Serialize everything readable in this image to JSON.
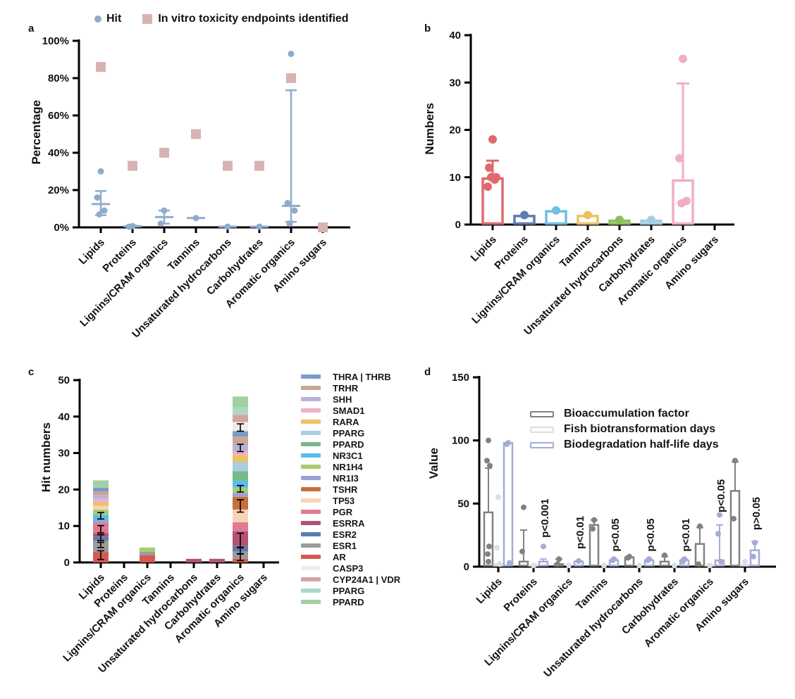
{
  "panels": {
    "a": {
      "label": "a",
      "ylabel": "Percentage"
    },
    "b": {
      "label": "b",
      "ylabel": "Numbers"
    },
    "c": {
      "label": "c",
      "ylabel": "Hit numbers"
    },
    "d": {
      "label": "d",
      "ylabel": "Value"
    }
  },
  "categories": [
    "Lipids",
    "Proteins",
    "Lignins/CRAM organics",
    "Tannins",
    "Unsaturated hydrocarbons",
    "Carbohydrates",
    "Aromatic organics",
    "Amino sugars"
  ],
  "chart_data": [
    {
      "type": "scatter",
      "panel": "a",
      "ylabel": "Percentage",
      "ylim": [
        0,
        100
      ],
      "yticks": [
        0,
        20,
        40,
        60,
        80,
        100
      ],
      "ytick_suffix": "%",
      "categories": [
        "Lipids",
        "Proteins",
        "Lignins/CRAM organics",
        "Tannins",
        "Unsaturated hydrocarbons",
        "Carbohydrates",
        "Aromatic organics",
        "Amino sugars"
      ],
      "series": [
        {
          "name": "Hit",
          "marker": "circle",
          "color": "#8faccd",
          "points": [
            [
              30,
              16,
              9,
              7
            ],
            [
              0.7,
              0.4
            ],
            [
              9,
              2
            ],
            [
              5
            ],
            [
              0.4
            ],
            [
              0.4
            ],
            [
              93,
              13,
              9,
              2
            ],
            []
          ],
          "mean": [
            12.5,
            0.6,
            5.5,
            5,
            0.4,
            0.4,
            11.5,
            null
          ],
          "err_lo": [
            6.5,
            0.4,
            2,
            5,
            0.4,
            0.4,
            3,
            null
          ],
          "err_hi": [
            19.5,
            0.9,
            9,
            5,
            0.4,
            0.4,
            73.5,
            null
          ]
        },
        {
          "name": "In vitro toxicity endpoints identified",
          "marker": "square",
          "color": "#d9b2b4",
          "points": [
            [
              86
            ],
            [
              33
            ],
            [
              40
            ],
            [
              50
            ],
            [
              33
            ],
            [
              33
            ],
            [
              80
            ],
            [
              0
            ]
          ]
        }
      ]
    },
    {
      "type": "bar",
      "panel": "b",
      "ylabel": "Numbers",
      "ylim": [
        0,
        40
      ],
      "yticks": [
        0,
        10,
        20,
        30,
        40
      ],
      "categories": [
        "Lipids",
        "Proteins",
        "Lignins/CRAM organics",
        "Tannins",
        "Unsaturated hydrocarbons",
        "Carbohydrates",
        "Aromatic organics",
        "Amino sugars"
      ],
      "bar_colors": [
        "#e0696e",
        "#5b7db1",
        "#6ec0e4",
        "#ecc161",
        "#8fbf5a",
        "#a6cde3",
        "#f2afc1",
        "#cccccc"
      ],
      "bars": [
        9.7,
        1.8,
        2.8,
        1.8,
        0.8,
        0.8,
        9.3,
        0
      ],
      "err_hi": [
        13.5,
        null,
        null,
        null,
        null,
        null,
        29.8,
        null
      ],
      "dots": [
        [
          18,
          12,
          10,
          10,
          9.5,
          8
        ],
        [
          2
        ],
        [
          3
        ],
        [
          2
        ],
        [
          1
        ],
        [
          1
        ],
        [
          35,
          14,
          5,
          4.5
        ],
        []
      ]
    },
    {
      "type": "bar",
      "subtype": "stacked",
      "panel": "c",
      "ylabel": "Hit numbers",
      "ylim": [
        0,
        50
      ],
      "yticks": [
        0,
        10,
        20,
        30,
        40,
        50
      ],
      "categories": [
        "Lipids",
        "Proteins",
        "Lignins/CRAM organics",
        "Tannins",
        "Unsaturated hydrocarbons",
        "Carbohydrates",
        "Aromatic organics",
        "Amino sugars"
      ],
      "colors": {
        "THRA | THRB": "#7b9cc9",
        "TRHR": "#c8a794",
        "SHH": "#b9b3d8",
        "SMAD1": "#f2afc4",
        "RARA": "#edc169",
        "PPARG": "#a9cfe1",
        "PPARD": "#77b98a",
        "NR3C1": "#5cbde6",
        "NR1H4": "#a9cc70",
        "NR1I3": "#97a3d6",
        "TSHR": "#c96f3a",
        "TP53": "#f7d4b5",
        "PGR": "#e17a8e",
        "ESRRA": "#b25374",
        "ESR2": "#5a7cb5",
        "ESR1": "#9b9b9b",
        "AR": "#d55853",
        "CASP3": "#efedeb",
        "CYP24A1 | VDR": "#d4a3a4",
        "PPARG_2": "#abd9c6",
        "PPARD_2": "#a3cfa3"
      },
      "legend": [
        {
          "key": "THRA | THRB",
          "label": "THRA | THRB"
        },
        {
          "key": "TRHR",
          "label": "TRHR"
        },
        {
          "key": "SHH",
          "label": "SHH"
        },
        {
          "key": "SMAD1",
          "label": "SMAD1"
        },
        {
          "key": "RARA",
          "label": "RARA"
        },
        {
          "key": "PPARG",
          "label": "PPARG"
        },
        {
          "key": "PPARD",
          "label": "PPARD"
        },
        {
          "key": "NR3C1",
          "label": "NR3C1"
        },
        {
          "key": "NR1H4",
          "label": "NR1H4"
        },
        {
          "key": "NR1I3",
          "label": "NR1I3"
        },
        {
          "key": "TSHR",
          "label": "TSHR"
        },
        {
          "key": "TP53",
          "label": "TP53"
        },
        {
          "key": "PGR",
          "label": "PGR"
        },
        {
          "key": "ESRRA",
          "label": "ESRRA"
        },
        {
          "key": "ESR2",
          "label": "ESR2"
        },
        {
          "key": "ESR1",
          "label": "ESR1"
        },
        {
          "key": "AR",
          "label": "AR"
        },
        {
          "key": "CASP3",
          "label": "CASP3"
        },
        {
          "key": "CYP24A1 | VDR",
          "label": "CYP24A1 | VDR"
        },
        {
          "key": "PPARG_2",
          "label": "PPARG"
        },
        {
          "key": "PPARD_2",
          "label": "PPARD"
        }
      ],
      "stacks": [
        [
          [
            "AR",
            2.8
          ],
          [
            "ESR1",
            3.2
          ],
          [
            "ESR2",
            1.0
          ],
          [
            "ESRRA",
            1.0
          ],
          [
            "PGR",
            2.8
          ],
          [
            "NR1I3",
            0.8
          ],
          [
            "NR3C1",
            1.5
          ],
          [
            "NR1H4",
            1.4
          ],
          [
            "TP53",
            1.0
          ],
          [
            "RARA",
            1.0
          ],
          [
            "SMAD1",
            1.0
          ],
          [
            "SHH",
            1.0
          ],
          [
            "TRHR",
            1.0
          ],
          [
            "THRA | THRB",
            1.0
          ],
          [
            "PPARD_2",
            2.0
          ]
        ],
        [],
        [
          [
            "AR",
            2.0
          ],
          [
            "ESR1",
            0.9
          ],
          [
            "NR1H4",
            1.2
          ]
        ],
        [],
        [
          [
            "ESRRA",
            1.0
          ]
        ],
        [
          [
            "ESRRA",
            1.0
          ]
        ],
        [
          [
            "AR",
            1.0
          ],
          [
            "ESR1",
            2.0
          ],
          [
            "ESR2",
            1.5
          ],
          [
            "ESRRA",
            4.0
          ],
          [
            "PGR",
            2.5
          ],
          [
            "TP53",
            3.5
          ],
          [
            "TSHR",
            3.5
          ],
          [
            "NR1I3",
            1.0
          ],
          [
            "NR1H4",
            1.5
          ],
          [
            "NR3C1",
            2.0
          ],
          [
            "PPARD",
            2.5
          ],
          [
            "PPARG",
            2.5
          ],
          [
            "RARA",
            2.0
          ],
          [
            "SMAD1",
            1.0
          ],
          [
            "SHH",
            2.0
          ],
          [
            "TRHR",
            2.0
          ],
          [
            "THRA | THRB",
            1.5
          ],
          [
            "CASP3",
            2.5
          ],
          [
            "CYP24A1 | VDR",
            2.0
          ],
          [
            "PPARG_2",
            2.0
          ],
          [
            "PPARD_2",
            3.0
          ]
        ],
        []
      ],
      "error_marks": [
        [
          [
            12.8,
            0.9
          ],
          [
            9.1,
            1.0
          ],
          [
            6.8,
            0.8
          ],
          [
            4.8,
            0.7
          ],
          [
            2.0,
            1.2
          ]
        ],
        [],
        [],
        [],
        [],
        [],
        [
          [
            37,
            1.0
          ],
          [
            31.4,
            1.0
          ],
          [
            20.2,
            0.9
          ],
          [
            15.5,
            1.7
          ],
          [
            6,
            2.0
          ],
          [
            3.3,
            0.9
          ],
          [
            1.4,
            0.9
          ]
        ],
        []
      ]
    },
    {
      "type": "bar",
      "subtype": "grouped",
      "panel": "d",
      "ylabel": "Value",
      "ylim": [
        0,
        150
      ],
      "yticks": [
        0,
        50,
        100,
        150
      ],
      "categories": [
        "Lipids",
        "Proteins",
        "Lignins/CRAM organics",
        "Tannins",
        "Unsaturated hydrocarbons",
        "Carbohydrates",
        "Aromatic organics",
        "Amino sugars"
      ],
      "series": [
        {
          "name": "Bioaccumulation factor",
          "color": "#818181",
          "bars": [
            43,
            4,
            2,
            33,
            7.5,
            4,
            18,
            60
          ],
          "err_hi": [
            78,
            29,
            6,
            37,
            null,
            8,
            31,
            83
          ],
          "dots": [
            [
              100,
              84,
              80,
              16,
              10,
              4
            ],
            [
              47,
              12
            ],
            [
              6,
              2
            ],
            [
              37,
              30
            ],
            [
              8,
              7
            ],
            [
              9
            ],
            [
              32,
              2
            ],
            [
              84,
              38
            ]
          ]
        },
        {
          "name": "Fish biotransformation days",
          "color": "#dedede",
          "bars": [
            2,
            1,
            0.7,
            0.7,
            0.7,
            0.7,
            1,
            1.5
          ],
          "err_hi": [
            null,
            null,
            null,
            null,
            null,
            null,
            null,
            null
          ],
          "dots": [
            [
              55,
              15,
              2
            ],
            [
              1
            ],
            [
              1
            ],
            [
              1
            ],
            [
              1
            ],
            [
              1
            ],
            [
              1
            ],
            [
              4
            ]
          ]
        },
        {
          "name": "Biodegradation half-life days",
          "color": "#a3abd8",
          "bars": [
            98,
            4,
            4,
            5,
            5,
            5,
            5,
            13
          ],
          "err_hi": [
            null,
            6,
            4.5,
            6,
            6,
            6,
            33,
            20
          ],
          "dots": [
            [
              98,
              97,
              3
            ],
            [
              16
            ],
            [
              4.5
            ],
            [
              6,
              5
            ],
            [
              6,
              5
            ],
            [
              6,
              4
            ],
            [
              41,
              26,
              4
            ],
            [
              19,
              8
            ]
          ]
        }
      ],
      "p_labels": [
        "",
        "p<0.001",
        "p<0.01",
        "p<0.05",
        "p<0.05",
        "p<0.01",
        "p<0.05",
        "p>0.05"
      ],
      "p_label_y": [
        null,
        23,
        14,
        12,
        12,
        12,
        43,
        29
      ]
    }
  ]
}
